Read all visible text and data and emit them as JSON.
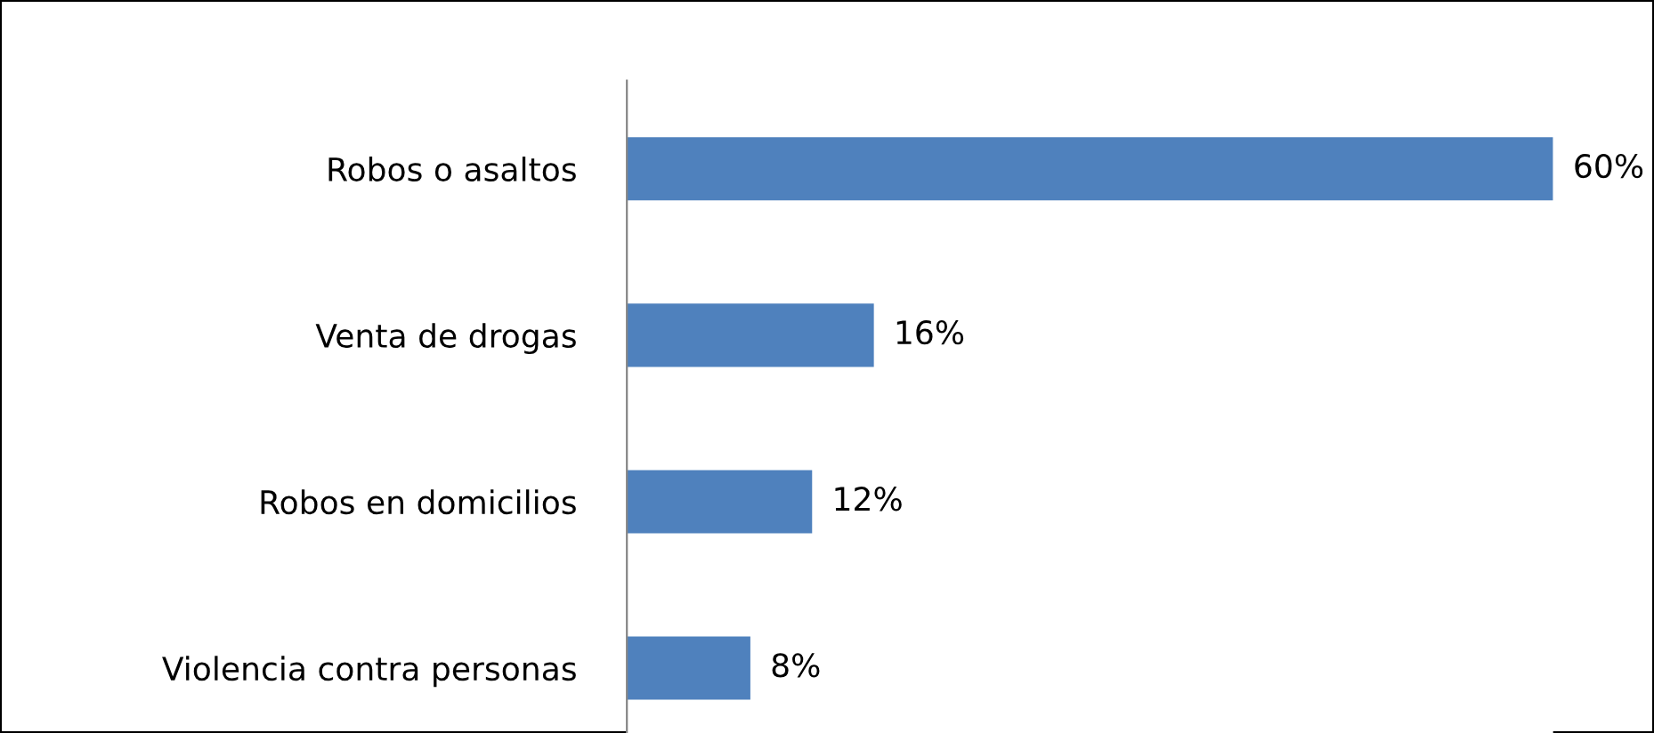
{
  "chart_data": {
    "type": "bar",
    "orientation": "horizontal",
    "categories": [
      "Robos o asaltos",
      "Venta de drogas",
      "Robos en domicilios",
      "Violencia contra personas"
    ],
    "values": [
      60,
      16,
      12,
      8
    ],
    "value_labels": [
      "60%",
      "16%",
      "12%",
      "8%"
    ],
    "color": "#4f81bd",
    "grid": false,
    "legend": false
  }
}
